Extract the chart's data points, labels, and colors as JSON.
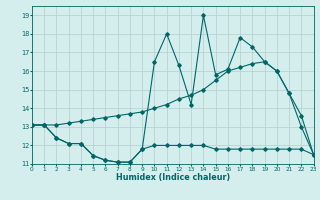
{
  "xlabel": "Humidex (Indice chaleur)",
  "xlim": [
    0,
    23
  ],
  "ylim": [
    11,
    19.5
  ],
  "xticks": [
    0,
    1,
    2,
    3,
    4,
    5,
    6,
    7,
    8,
    9,
    10,
    11,
    12,
    13,
    14,
    15,
    16,
    17,
    18,
    19,
    20,
    21,
    22,
    23
  ],
  "yticks": [
    11,
    12,
    13,
    14,
    15,
    16,
    17,
    18,
    19
  ],
  "bg_color": "#d4eeee",
  "grid_color": "#b8cccc",
  "line_color": "#006666",
  "line1_x": [
    0,
    1,
    2,
    3,
    4,
    5,
    6,
    7,
    8,
    9,
    10,
    11,
    12,
    13,
    14,
    15,
    16,
    17,
    18,
    19,
    20,
    21,
    22,
    23
  ],
  "line1_y": [
    13.1,
    13.1,
    12.4,
    12.1,
    12.1,
    11.45,
    11.2,
    11.1,
    11.1,
    11.8,
    12.0,
    12.0,
    12.0,
    12.0,
    12.0,
    11.8,
    11.8,
    11.8,
    11.8,
    11.8,
    11.8,
    11.8,
    11.8,
    11.5
  ],
  "line2_x": [
    0,
    1,
    2,
    3,
    4,
    5,
    6,
    7,
    8,
    9,
    10,
    11,
    12,
    13,
    14,
    15,
    16,
    17,
    18,
    19,
    20,
    21,
    22,
    23
  ],
  "line2_y": [
    13.1,
    13.1,
    13.1,
    13.2,
    13.3,
    13.4,
    13.5,
    13.6,
    13.7,
    13.8,
    14.0,
    14.2,
    14.5,
    14.7,
    15.0,
    15.5,
    16.0,
    16.2,
    16.4,
    16.5,
    16.0,
    14.8,
    13.6,
    11.5
  ],
  "line3_x": [
    0,
    1,
    2,
    3,
    4,
    5,
    6,
    7,
    8,
    9,
    10,
    11,
    12,
    13,
    14,
    15,
    16,
    17,
    18,
    19,
    20,
    21,
    22,
    23
  ],
  "line3_y": [
    13.1,
    13.1,
    12.4,
    12.1,
    12.1,
    11.45,
    11.2,
    11.1,
    11.1,
    11.8,
    16.5,
    18.0,
    16.3,
    14.2,
    19.0,
    15.8,
    16.1,
    17.8,
    17.3,
    16.5,
    16.0,
    14.8,
    13.0,
    11.5
  ],
  "figsize": [
    3.2,
    2.0
  ],
  "dpi": 100
}
